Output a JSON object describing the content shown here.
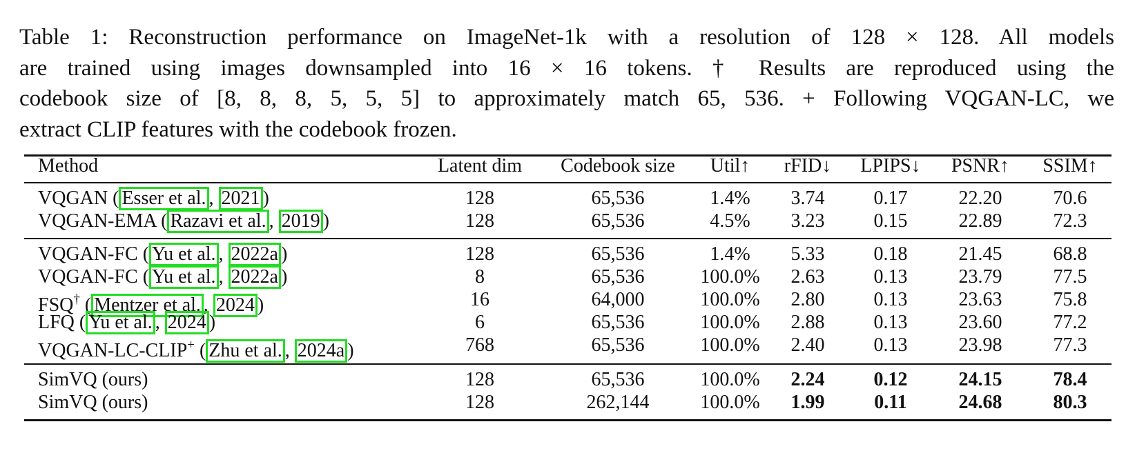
{
  "caption": {
    "lines": [
      "Table 1: Reconstruction performance on ImageNet-1k with a resolution of 128 × 128. All models",
      "are trained using images downsampled into 16 × 16 tokens. † Results are reproduced using the",
      "codebook size of [8, 8, 8, 5, 5, 5] to approximately match 65, 536. + Following VQGAN-LC, we",
      "extract CLIP features with the codebook frozen."
    ]
  },
  "table": {
    "headers": [
      "Method",
      "Latent dim",
      "Codebook size",
      "Util↑",
      "rFID↓",
      "LPIPS↓",
      "PSNR↑",
      "SSIM↑"
    ],
    "groups": [
      [
        {
          "method": "VQGAN",
          "sup": "",
          "author": "Esser et al.",
          "year": "2021",
          "latent": "128",
          "codebook": "65,536",
          "util": "1.4%",
          "rfid": "3.74",
          "lpips": "0.17",
          "psnr": "22.20",
          "ssim": "70.6"
        },
        {
          "method": "VQGAN-EMA",
          "sup": "",
          "author": "Razavi et al.",
          "year": "2019",
          "latent": "128",
          "codebook": "65,536",
          "util": "4.5%",
          "rfid": "3.23",
          "lpips": "0.15",
          "psnr": "22.89",
          "ssim": "72.3"
        }
      ],
      [
        {
          "method": "VQGAN-FC",
          "sup": "",
          "author": "Yu et al.",
          "year": "2022a",
          "latent": "128",
          "codebook": "65,536",
          "util": "1.4%",
          "rfid": "5.33",
          "lpips": "0.18",
          "psnr": "21.45",
          "ssim": "68.8"
        },
        {
          "method": "VQGAN-FC",
          "sup": "",
          "author": "Yu et al.",
          "year": "2022a",
          "latent": "8",
          "codebook": "65,536",
          "util": "100.0%",
          "rfid": "2.63",
          "lpips": "0.13",
          "psnr": "23.79",
          "ssim": "77.5"
        },
        {
          "method": "FSQ",
          "sup": "†",
          "author": "Mentzer et al.",
          "year": "2024",
          "latent": "16",
          "codebook": "64,000",
          "util": "100.0%",
          "rfid": "2.80",
          "lpips": "0.13",
          "psnr": "23.63",
          "ssim": "75.8"
        },
        {
          "method": "LFQ",
          "sup": "",
          "author": "Yu et al.",
          "year": "2024",
          "latent": "6",
          "codebook": "65,536",
          "util": "100.0%",
          "rfid": "2.88",
          "lpips": "0.13",
          "psnr": "23.60",
          "ssim": "77.2"
        },
        {
          "method": "VQGAN-LC-CLIP",
          "sup": "+",
          "author": "Zhu et al.",
          "year": "2024a",
          "latent": "768",
          "codebook": "65,536",
          "util": "100.0%",
          "rfid": "2.40",
          "lpips": "0.13",
          "psnr": "23.98",
          "ssim": "77.3"
        }
      ],
      [
        {
          "method": "SimVQ (ours)",
          "sup": "",
          "author": "",
          "year": "",
          "latent": "128",
          "codebook": "65,536",
          "util": "100.0%",
          "rfid": "2.24",
          "lpips": "0.12",
          "psnr": "24.15",
          "ssim": "78.4",
          "best": true
        },
        {
          "method": "SimVQ (ours)",
          "sup": "",
          "author": "",
          "year": "",
          "latent": "128",
          "codebook": "262,144",
          "util": "100.0%",
          "rfid": "1.99",
          "lpips": "0.11",
          "psnr": "24.68",
          "ssim": "80.3",
          "best": true
        }
      ]
    ]
  },
  "colors": {
    "citation_box": "#22dd22",
    "text": "#111111"
  }
}
